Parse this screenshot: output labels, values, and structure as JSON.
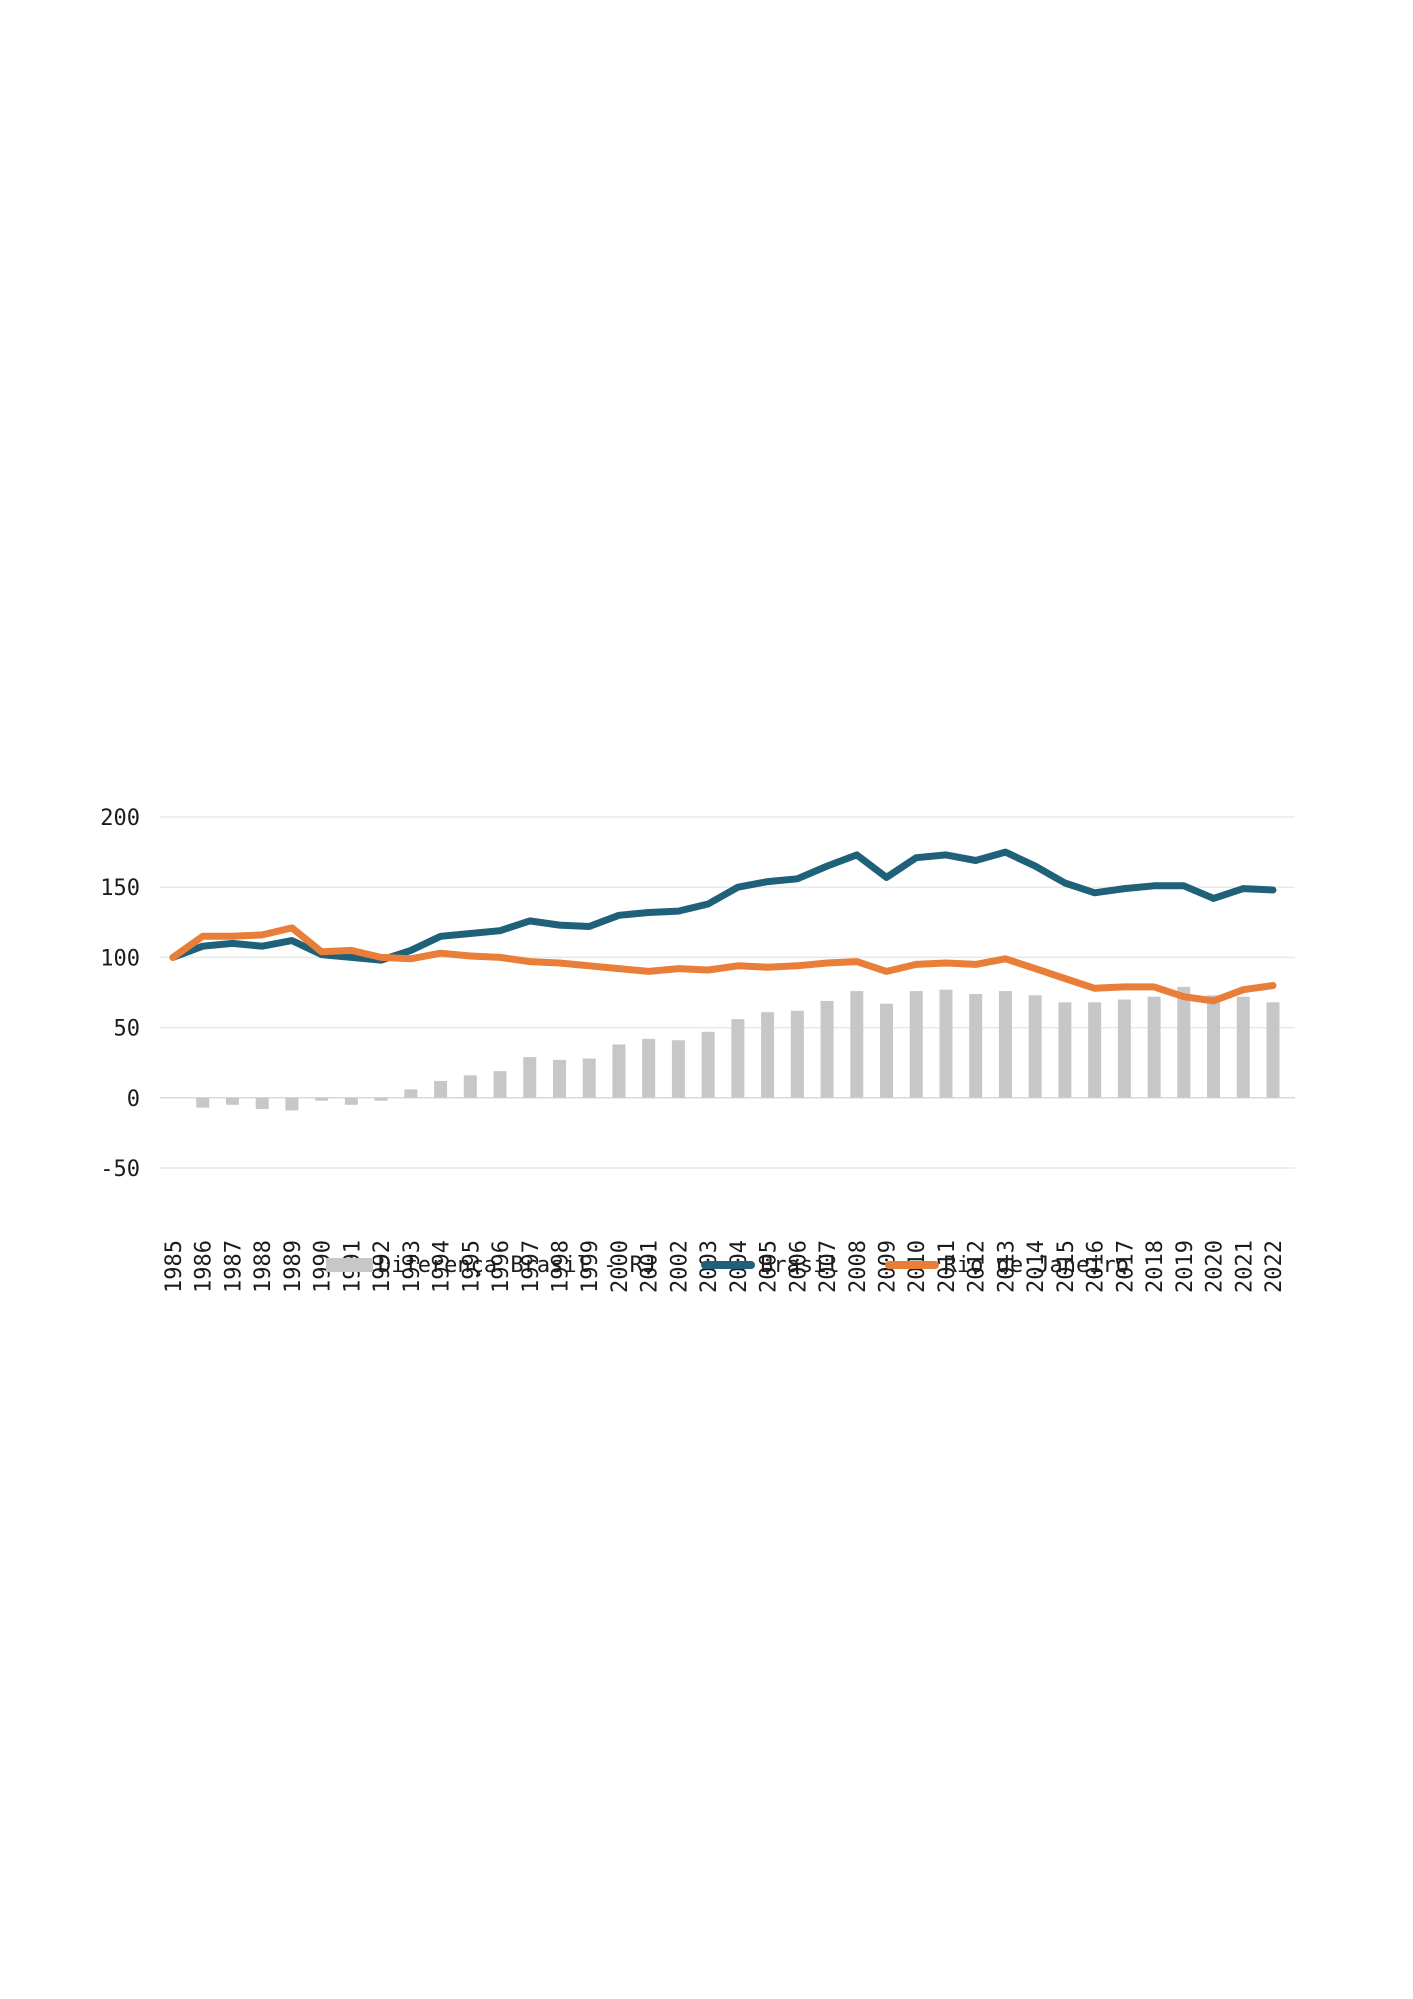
{
  "legend": {
    "items": [
      {
        "label": "Diferença Brasil - RJ",
        "color": "#c7c7c7",
        "swatch": "bar"
      },
      {
        "label": "Brasil",
        "color": "#1f6179",
        "swatch": "line"
      },
      {
        "label": "Rio de Janeiro",
        "color": "#e87e38",
        "swatch": "line"
      }
    ]
  },
  "chart_data": {
    "type": "combo",
    "title": "",
    "xlabel": "",
    "ylabel": "",
    "x": [
      1985,
      1986,
      1987,
      1988,
      1989,
      1990,
      1991,
      1992,
      1993,
      1994,
      1995,
      1996,
      1997,
      1998,
      1999,
      2000,
      2001,
      2002,
      2003,
      2004,
      2005,
      2006,
      2007,
      2008,
      2009,
      2010,
      2011,
      2012,
      2013,
      2014,
      2015,
      2016,
      2017,
      2018,
      2019,
      2020,
      2021,
      2022
    ],
    "series": [
      {
        "name": "Diferença Brasil - RJ",
        "type": "bar",
        "color": "#c7c7c7",
        "values": [
          0,
          -7,
          -5,
          -8,
          -9,
          -2,
          -5,
          -2,
          6,
          12,
          16,
          19,
          29,
          27,
          28,
          38,
          42,
          41,
          47,
          56,
          61,
          62,
          69,
          76,
          67,
          76,
          77,
          74,
          76,
          73,
          68,
          68,
          70,
          72,
          79,
          73,
          72,
          68
        ]
      },
      {
        "name": "Brasil",
        "type": "line",
        "color": "#1f6179",
        "values": [
          100,
          108,
          110,
          108,
          112,
          102,
          100,
          98,
          105,
          115,
          117,
          119,
          126,
          123,
          122,
          130,
          132,
          133,
          138,
          150,
          154,
          156,
          165,
          173,
          157,
          171,
          173,
          169,
          175,
          165,
          153,
          146,
          149,
          151,
          151,
          142,
          149,
          148
        ]
      },
      {
        "name": "Rio de Janeiro",
        "type": "line",
        "color": "#e87e38",
        "values": [
          100,
          115,
          115,
          116,
          121,
          104,
          105,
          100,
          99,
          103,
          101,
          100,
          97,
          96,
          94,
          92,
          90,
          92,
          91,
          94,
          93,
          94,
          96,
          97,
          90,
          95,
          96,
          95,
          99,
          92,
          85,
          78,
          79,
          79,
          72,
          69,
          77,
          80
        ]
      }
    ],
    "ylim": [
      -50,
      200
    ],
    "yticks": [
      200,
      150,
      100,
      50,
      0,
      -50
    ],
    "grid": true,
    "legend_position": "bottom",
    "tick_color": "#1c1c1c",
    "grid_color": "#e9e9e9",
    "zero_line_color": "#d9d9d9"
  }
}
